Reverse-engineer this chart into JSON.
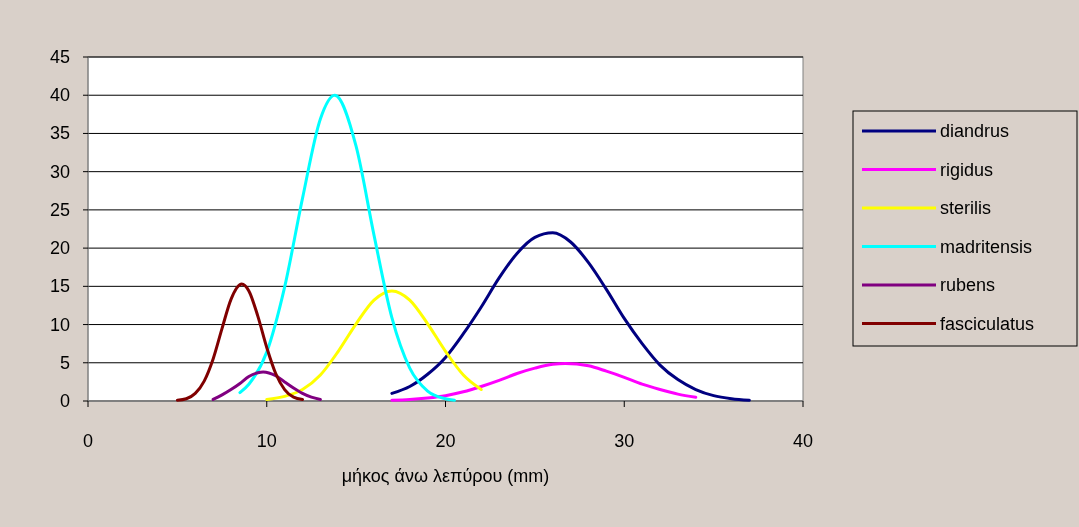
{
  "chart_data": {
    "type": "line",
    "xlabel": "μήκος άνω λεπύρου (mm)",
    "xlim": [
      0,
      40
    ],
    "xticks": [
      0,
      10,
      20,
      30,
      40
    ],
    "ylim": [
      0,
      45
    ],
    "yticks": [
      0,
      5,
      10,
      15,
      20,
      25,
      30,
      35,
      40,
      45
    ],
    "grid": "y",
    "legend": "right",
    "marker": "none",
    "line_style": "solid",
    "series": [
      {
        "name": "diandrus",
        "color": "#000080",
        "x": [
          17,
          18,
          19,
          20,
          21,
          22,
          23,
          24,
          25,
          26,
          27,
          28,
          29,
          30,
          31,
          32,
          33,
          34,
          35,
          36,
          37
        ],
        "values": [
          1.0,
          1.9,
          3.5,
          5.7,
          8.8,
          12.3,
          16.1,
          19.3,
          21.4,
          22.0,
          20.8,
          18.1,
          14.6,
          10.8,
          7.5,
          4.7,
          2.8,
          1.5,
          0.7,
          0.3,
          0.1
        ]
      },
      {
        "name": "rigidus",
        "color": "#ff00ff",
        "x": [
          17,
          18,
          19,
          20,
          21,
          22,
          23,
          24,
          25,
          26,
          26.7,
          28,
          29,
          30,
          31,
          32,
          33,
          34
        ],
        "values": [
          0.1,
          0.2,
          0.4,
          0.7,
          1.2,
          1.9,
          2.7,
          3.6,
          4.3,
          4.8,
          4.9,
          4.6,
          3.9,
          3.1,
          2.2,
          1.5,
          0.9,
          0.5
        ]
      },
      {
        "name": "sterilis",
        "color": "#ffff00",
        "x": [
          10,
          11,
          12,
          13,
          14,
          15,
          16,
          17,
          18,
          19,
          20,
          21,
          22
        ],
        "values": [
          0.2,
          0.6,
          1.5,
          3.4,
          6.5,
          10.1,
          13.2,
          14.4,
          13.2,
          10.1,
          6.5,
          3.4,
          1.5
        ]
      },
      {
        "name": "madritensis",
        "color": "#00ffff",
        "x": [
          8.5,
          9,
          10,
          11,
          12,
          13,
          13.8,
          15,
          16,
          17,
          18,
          19,
          20,
          20.5
        ],
        "values": [
          1.1,
          2.2,
          6.4,
          14.9,
          26.5,
          36.9,
          40,
          33.3,
          21.7,
          10.9,
          4.3,
          1.3,
          0.3,
          0.1
        ]
      },
      {
        "name": "rubens",
        "color": "#800080",
        "x": [
          7,
          7.5,
          8,
          8.5,
          9,
          9.5,
          9.8,
          10.5,
          11,
          11.5,
          12,
          12.5,
          13
        ],
        "values": [
          0.2,
          0.8,
          1.5,
          2.3,
          3.2,
          3.7,
          3.8,
          3.3,
          2.5,
          1.7,
          1.0,
          0.5,
          0.2
        ]
      },
      {
        "name": "fasciculatus",
        "color": "#800000",
        "x": [
          5,
          5.5,
          6,
          6.5,
          7,
          7.5,
          8,
          8.6,
          9,
          9.5,
          10,
          10.5,
          11,
          11.5,
          12
        ],
        "values": [
          0.1,
          0.3,
          1.0,
          2.6,
          5.5,
          9.5,
          13.3,
          15.3,
          14.4,
          11.1,
          7.0,
          3.6,
          1.5,
          0.5,
          0.2
        ]
      }
    ]
  }
}
